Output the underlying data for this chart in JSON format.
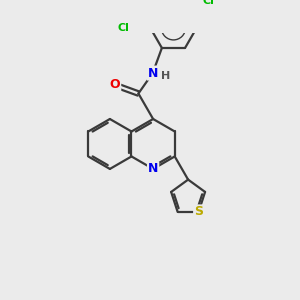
{
  "background_color": "#ebebeb",
  "bond_color": "#3a3a3a",
  "atom_colors": {
    "N": "#0000ee",
    "O": "#ee0000",
    "S": "#bbaa00",
    "Cl": "#00bb00",
    "H": "#555555"
  },
  "lw": 1.6,
  "r_hex": 28,
  "r_th": 20
}
